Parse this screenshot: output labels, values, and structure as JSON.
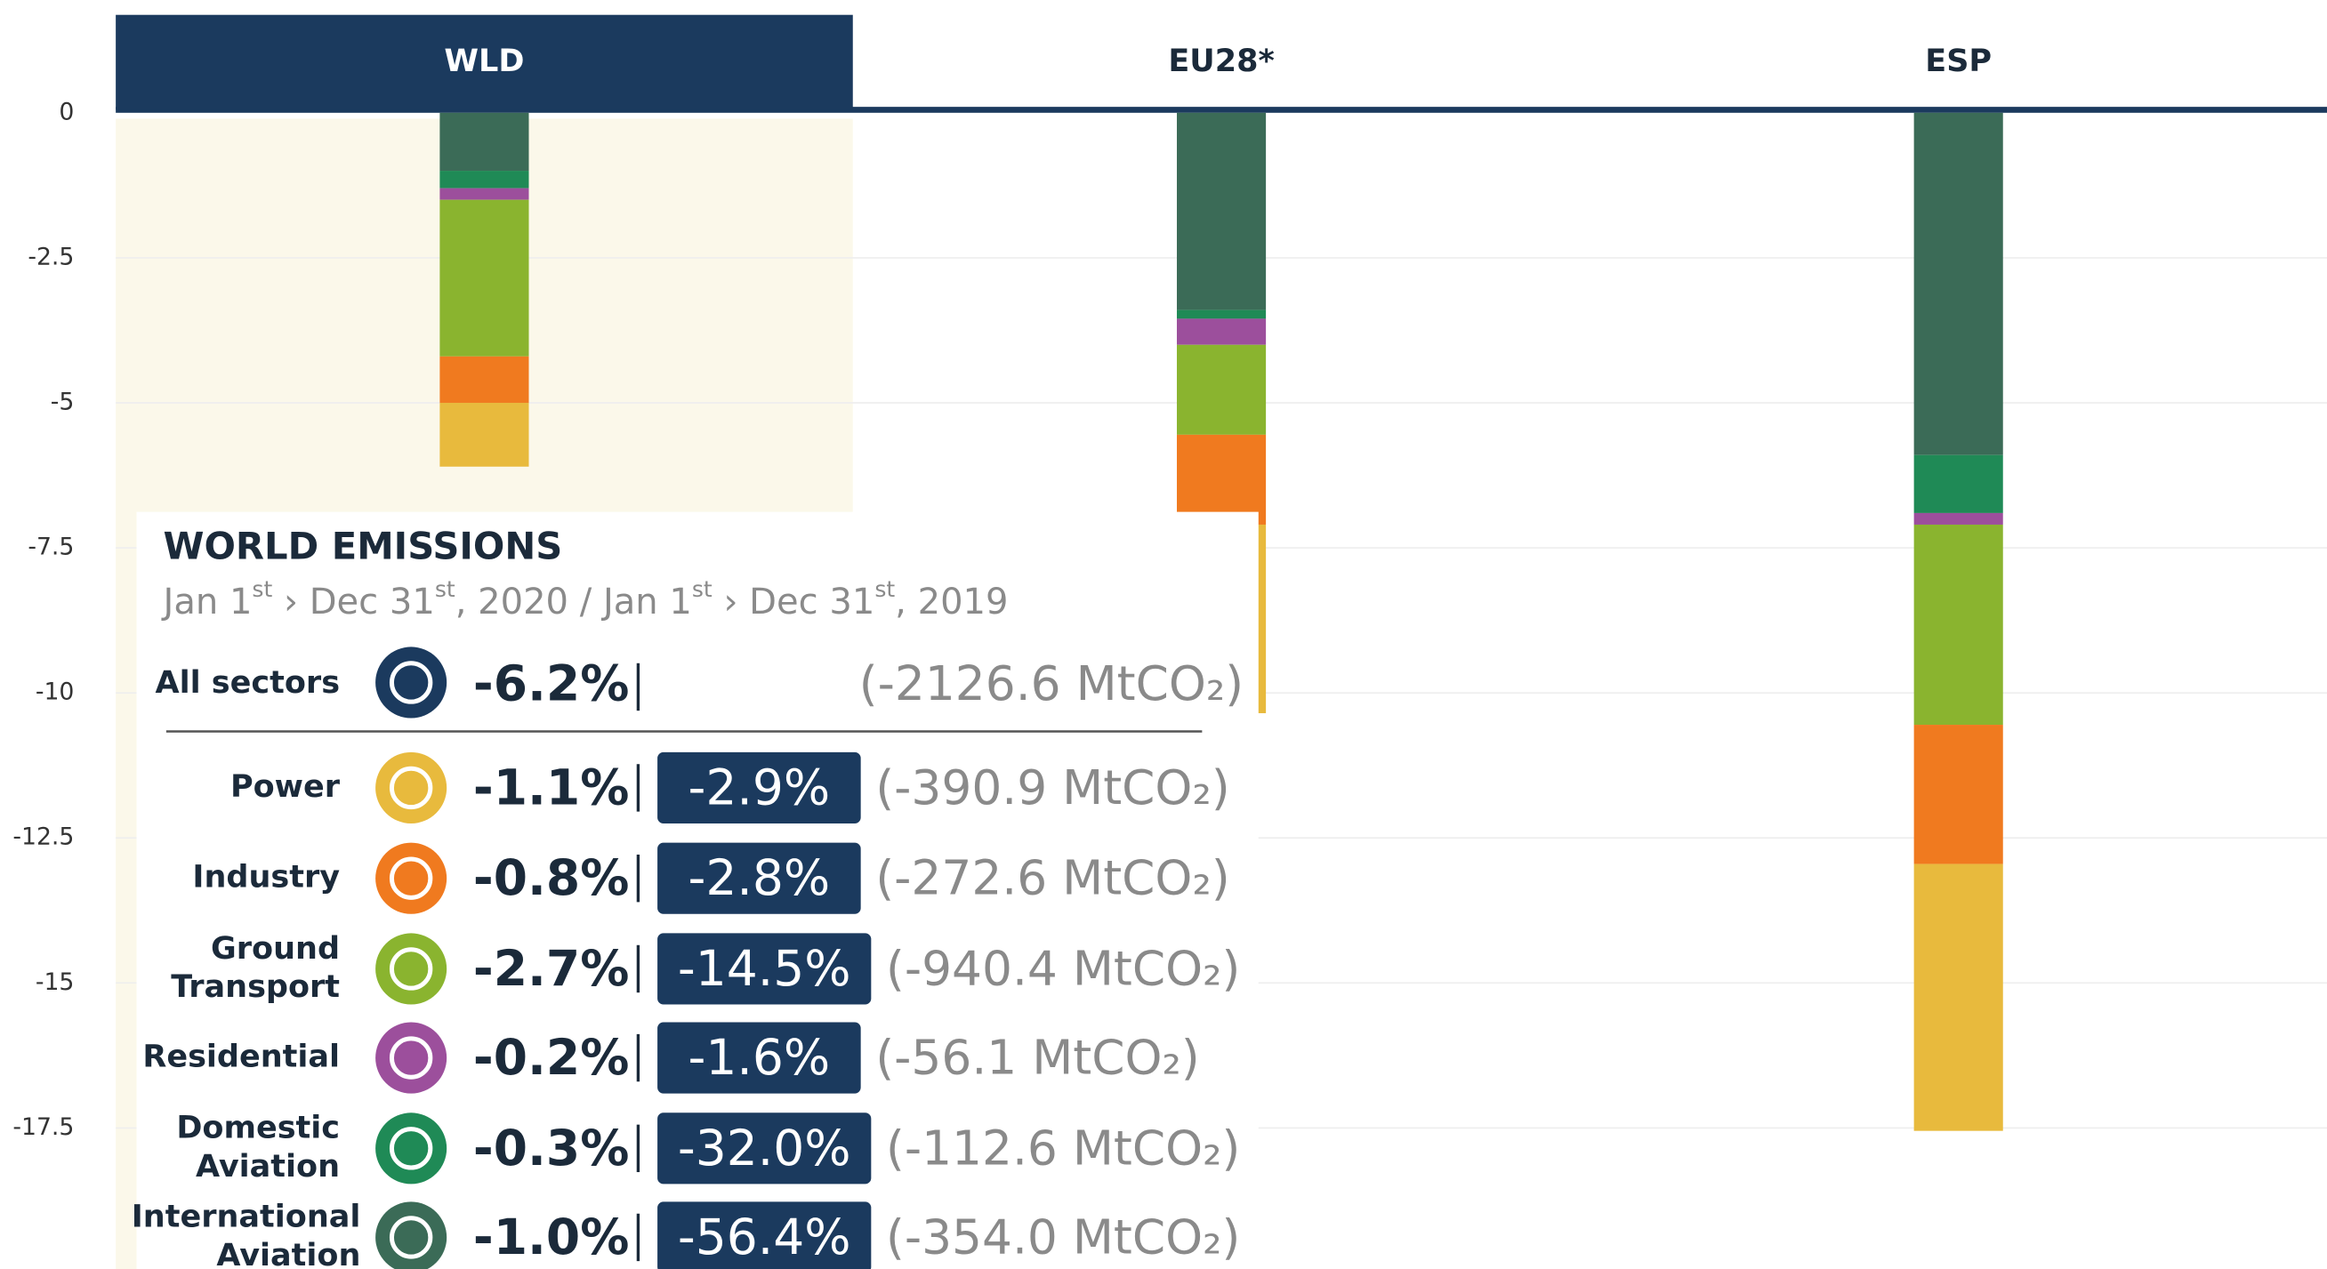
{
  "chart_data": {
    "type": "stacked_bar",
    "categories": [
      "WLD",
      "EU28*",
      "ESP"
    ],
    "active_category": "WLD",
    "series": [
      {
        "name": "International Aviation",
        "color": "#3b6b57",
        "values": [
          -1.0,
          -3.4,
          -5.9
        ]
      },
      {
        "name": "Domestic Aviation",
        "color": "#1f8a56",
        "values": [
          -0.3,
          -0.15,
          -1.0
        ]
      },
      {
        "name": "Residential",
        "color": "#9c4f9c",
        "values": [
          -0.2,
          -0.45,
          -0.2
        ]
      },
      {
        "name": "Ground Transport",
        "color": "#8ab42f",
        "values": [
          -2.7,
          -1.55,
          -3.45
        ]
      },
      {
        "name": "Industry",
        "color": "#f07a1f",
        "values": [
          -0.8,
          -1.55,
          -2.4
        ]
      },
      {
        "name": "Power",
        "color": "#e8ba3d",
        "values": [
          -1.1,
          -3.25,
          -4.6
        ]
      }
    ],
    "ylim": [
      -20,
      0
    ],
    "yticks": [
      0,
      -2.5,
      -5,
      -7.5,
      -10,
      -12.5,
      -15,
      -17.5
    ],
    "grid": true
  },
  "tooltip": {
    "title": "WORLD EMISSIONS",
    "date_parts": [
      "Jan 1",
      "st",
      " › Dec 31",
      "st",
      ", 2020 / Jan 1",
      "st",
      " › Dec 31",
      "st",
      ", 2019"
    ],
    "total": {
      "label": "All sectors",
      "share": "-6.2%",
      "amount": "(-2126.6 MtCO₂)"
    },
    "rows": [
      {
        "label": [
          "Power"
        ],
        "color": "#e8ba3d",
        "share": "-1.1%",
        "change": "-2.9%",
        "amount": "(-390.9 MtCO₂)"
      },
      {
        "label": [
          "Industry"
        ],
        "color": "#f07a1f",
        "share": "-0.8%",
        "change": "-2.8%",
        "amount": "(-272.6 MtCO₂)"
      },
      {
        "label": [
          "Ground",
          "Transport"
        ],
        "color": "#8ab42f",
        "share": "-2.7%",
        "change": "-14.5%",
        "amount": "(-940.4 MtCO₂)"
      },
      {
        "label": [
          "Residential"
        ],
        "color": "#9c4f9c",
        "share": "-0.2%",
        "change": "-1.6%",
        "amount": "(-56.1 MtCO₂)"
      },
      {
        "label": [
          "Domestic",
          "Aviation"
        ],
        "color": "#1f8a56",
        "share": "-0.3%",
        "change": "-32.0%",
        "amount": "(-112.6 MtCO₂)"
      },
      {
        "label": [
          "International",
          "Aviation"
        ],
        "color": "#3b6b57",
        "share": "-1.0%",
        "change": "-56.4%",
        "amount": "(-354.0 MtCO₂)"
      }
    ]
  }
}
